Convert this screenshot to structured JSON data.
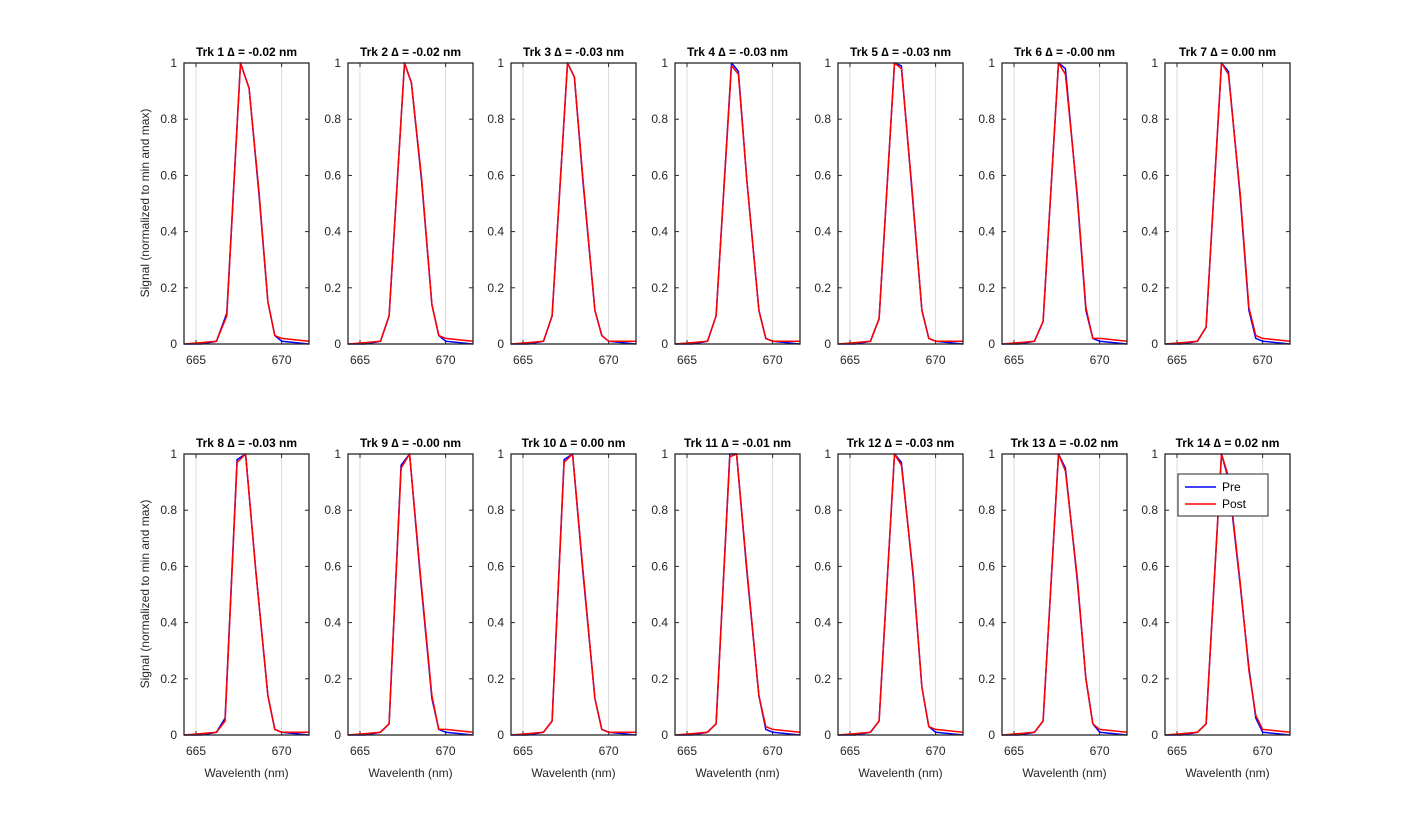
{
  "figure": {
    "ylabel": "Signal (normalized to min and max)",
    "xlabel": "Wavelenth (nm)",
    "legend": {
      "placement": "top-right of panel 14",
      "entries": [
        "Pre",
        "Post"
      ]
    },
    "colors": {
      "pre": "#0000ff",
      "post": "#ff0000",
      "axes": "#262626",
      "grid": "#dcdcdc",
      "background": "#ffffff"
    }
  },
  "chart_data": [
    {
      "type": "line",
      "title": "Trk 1 ∆ = -0.02 nm",
      "xlim": [
        664.3,
        671.6
      ],
      "ylim": [
        0,
        1
      ],
      "xticks": [
        665,
        670
      ],
      "yticks": [
        0,
        0.2,
        0.4,
        0.6,
        0.8,
        1
      ],
      "grid": true,
      "x": [
        664.3,
        665.3,
        666.2,
        666.8,
        667.6,
        668.1,
        668.7,
        669.2,
        669.6,
        670.0,
        671.6
      ],
      "series": [
        {
          "name": "Pre",
          "values": [
            0,
            0,
            0.01,
            0.11,
            1,
            0.91,
            0.52,
            0.15,
            0.03,
            0.01,
            0
          ]
        },
        {
          "name": "Post",
          "values": [
            0,
            0.005,
            0.01,
            0.1,
            1,
            0.91,
            0.53,
            0.15,
            0.03,
            0.02,
            0.01
          ]
        }
      ]
    },
    {
      "type": "line",
      "title": "Trk 2 ∆ = -0.02 nm",
      "xlim": [
        664.3,
        671.6
      ],
      "ylim": [
        0,
        1
      ],
      "xticks": [
        665,
        670
      ],
      "yticks": [
        0,
        0.2,
        0.4,
        0.6,
        0.8,
        1
      ],
      "grid": true,
      "x": [
        664.3,
        665.3,
        666.2,
        666.7,
        667.6,
        668.0,
        668.6,
        669.2,
        669.6,
        670.0,
        671.6
      ],
      "series": [
        {
          "name": "Pre",
          "values": [
            0,
            0,
            0.01,
            0.1,
            1,
            0.93,
            0.58,
            0.14,
            0.03,
            0.01,
            0
          ]
        },
        {
          "name": "Post",
          "values": [
            0,
            0.005,
            0.01,
            0.1,
            1,
            0.93,
            0.59,
            0.14,
            0.03,
            0.02,
            0.01
          ]
        }
      ]
    },
    {
      "type": "line",
      "title": "Trk 3 ∆ = -0.03 nm",
      "xlim": [
        664.3,
        671.6
      ],
      "ylim": [
        0,
        1
      ],
      "xticks": [
        665,
        670
      ],
      "yticks": [
        0,
        0.2,
        0.4,
        0.6,
        0.8,
        1
      ],
      "grid": true,
      "x": [
        664.3,
        665.3,
        666.2,
        666.7,
        667.6,
        668.0,
        668.5,
        669.2,
        669.6,
        670.0,
        671.6
      ],
      "series": [
        {
          "name": "Pre",
          "values": [
            0,
            0,
            0.01,
            0.1,
            1,
            0.95,
            0.58,
            0.12,
            0.03,
            0.01,
            0
          ]
        },
        {
          "name": "Post",
          "values": [
            0,
            0.005,
            0.01,
            0.1,
            1,
            0.95,
            0.59,
            0.12,
            0.03,
            0.01,
            0.01
          ]
        }
      ]
    },
    {
      "type": "line",
      "title": "Trk 4 ∆ = -0.03 nm",
      "xlim": [
        664.3,
        671.6
      ],
      "ylim": [
        0,
        1
      ],
      "xticks": [
        665,
        670
      ],
      "yticks": [
        0,
        0.2,
        0.4,
        0.6,
        0.8,
        1
      ],
      "grid": true,
      "x": [
        664.3,
        665.3,
        666.2,
        666.7,
        667.6,
        668.0,
        668.5,
        669.2,
        669.6,
        670.0,
        671.6
      ],
      "series": [
        {
          "name": "Pre",
          "values": [
            0,
            0,
            0.01,
            0.1,
            1,
            0.97,
            0.58,
            0.12,
            0.02,
            0.01,
            0
          ]
        },
        {
          "name": "Post",
          "values": [
            0,
            0.005,
            0.01,
            0.1,
            0.99,
            0.96,
            0.58,
            0.12,
            0.02,
            0.01,
            0.01
          ]
        }
      ]
    },
    {
      "type": "line",
      "title": "Trk 5 ∆ = -0.03 nm",
      "xlim": [
        664.3,
        671.6
      ],
      "ylim": [
        0,
        1
      ],
      "xticks": [
        665,
        670
      ],
      "yticks": [
        0,
        0.2,
        0.4,
        0.6,
        0.8,
        1
      ],
      "grid": true,
      "x": [
        664.3,
        665.3,
        666.2,
        666.7,
        667.6,
        668.0,
        668.6,
        669.2,
        669.6,
        670.0,
        671.6
      ],
      "series": [
        {
          "name": "Pre",
          "values": [
            0,
            0,
            0.01,
            0.09,
            1,
            0.99,
            0.56,
            0.12,
            0.02,
            0.01,
            0
          ]
        },
        {
          "name": "Post",
          "values": [
            0,
            0.005,
            0.01,
            0.09,
            1,
            0.98,
            0.57,
            0.12,
            0.02,
            0.01,
            0.01
          ]
        }
      ]
    },
    {
      "type": "line",
      "title": "Trk 6 ∆ = -0.00 nm",
      "xlim": [
        664.3,
        671.6
      ],
      "ylim": [
        0,
        1
      ],
      "xticks": [
        665,
        670
      ],
      "yticks": [
        0,
        0.2,
        0.4,
        0.6,
        0.8,
        1
      ],
      "grid": true,
      "x": [
        664.3,
        665.3,
        666.2,
        666.7,
        667.6,
        668.0,
        668.7,
        669.2,
        669.6,
        670.0,
        671.6
      ],
      "series": [
        {
          "name": "Pre",
          "values": [
            0,
            0,
            0.01,
            0.08,
            1,
            0.98,
            0.52,
            0.12,
            0.02,
            0.01,
            0
          ]
        },
        {
          "name": "Post",
          "values": [
            0,
            0.005,
            0.01,
            0.08,
            1,
            0.96,
            0.53,
            0.13,
            0.02,
            0.02,
            0.01
          ]
        }
      ]
    },
    {
      "type": "line",
      "title": "Trk 7 ∆ = 0.00 nm",
      "xlim": [
        664.3,
        671.6
      ],
      "ylim": [
        0,
        1
      ],
      "xticks": [
        665,
        670
      ],
      "yticks": [
        0,
        0.2,
        0.4,
        0.6,
        0.8,
        1
      ],
      "grid": true,
      "x": [
        664.3,
        665.3,
        666.2,
        666.7,
        667.6,
        668.0,
        668.7,
        669.2,
        669.6,
        670.0,
        671.6
      ],
      "series": [
        {
          "name": "Pre",
          "values": [
            0,
            0,
            0.01,
            0.06,
            1,
            0.97,
            0.52,
            0.12,
            0.02,
            0.01,
            0
          ]
        },
        {
          "name": "Post",
          "values": [
            0,
            0.005,
            0.01,
            0.06,
            1,
            0.96,
            0.53,
            0.13,
            0.03,
            0.02,
            0.01
          ]
        }
      ]
    },
    {
      "type": "line",
      "title": "Trk 8 ∆ = -0.03 nm",
      "xlim": [
        664.3,
        671.6
      ],
      "ylim": [
        0,
        1
      ],
      "xticks": [
        665,
        670
      ],
      "yticks": [
        0,
        0.2,
        0.4,
        0.6,
        0.8,
        1
      ],
      "grid": true,
      "x": [
        664.3,
        665.3,
        666.2,
        666.7,
        667.4,
        667.9,
        668.5,
        669.2,
        669.6,
        670.0,
        671.6
      ],
      "series": [
        {
          "name": "Pre",
          "values": [
            0,
            0,
            0.01,
            0.06,
            0.98,
            1,
            0.58,
            0.14,
            0.02,
            0.01,
            0
          ]
        },
        {
          "name": "Post",
          "values": [
            0,
            0.005,
            0.01,
            0.05,
            0.97,
            1,
            0.58,
            0.14,
            0.02,
            0.01,
            0.01
          ]
        }
      ]
    },
    {
      "type": "line",
      "title": "Trk 9 ∆ = -0.00 nm",
      "xlim": [
        664.3,
        671.6
      ],
      "ylim": [
        0,
        1
      ],
      "xticks": [
        665,
        670
      ],
      "yticks": [
        0,
        0.2,
        0.4,
        0.6,
        0.8,
        1
      ],
      "grid": true,
      "x": [
        664.3,
        665.3,
        666.2,
        666.7,
        667.4,
        667.9,
        668.5,
        669.2,
        669.6,
        670.0,
        671.6
      ],
      "series": [
        {
          "name": "Pre",
          "values": [
            0,
            0,
            0.01,
            0.04,
            0.96,
            1,
            0.58,
            0.13,
            0.02,
            0.01,
            0
          ]
        },
        {
          "name": "Post",
          "values": [
            0,
            0.005,
            0.01,
            0.04,
            0.95,
            1,
            0.59,
            0.14,
            0.02,
            0.02,
            0.01
          ]
        }
      ]
    },
    {
      "type": "line",
      "title": "Trk 10 ∆ = 0.00 nm",
      "xlim": [
        664.3,
        671.6
      ],
      "ylim": [
        0,
        1
      ],
      "xticks": [
        665,
        670
      ],
      "yticks": [
        0,
        0.2,
        0.4,
        0.6,
        0.8,
        1
      ],
      "grid": true,
      "x": [
        664.3,
        665.3,
        666.2,
        666.7,
        667.4,
        667.9,
        668.5,
        669.2,
        669.6,
        670.0,
        671.6
      ],
      "series": [
        {
          "name": "Pre",
          "values": [
            0,
            0,
            0.01,
            0.05,
            0.98,
            1,
            0.58,
            0.13,
            0.02,
            0.01,
            0
          ]
        },
        {
          "name": "Post",
          "values": [
            0,
            0.005,
            0.01,
            0.05,
            0.97,
            1,
            0.59,
            0.13,
            0.02,
            0.01,
            0.01
          ]
        }
      ]
    },
    {
      "type": "line",
      "title": "Trk 11 ∆ = -0.01 nm",
      "xlim": [
        664.3,
        671.6
      ],
      "ylim": [
        0,
        1
      ],
      "xticks": [
        665,
        670
      ],
      "yticks": [
        0,
        0.2,
        0.4,
        0.6,
        0.8,
        1
      ],
      "grid": true,
      "x": [
        664.3,
        665.3,
        666.2,
        666.7,
        667.5,
        667.9,
        668.5,
        669.2,
        669.6,
        670.0,
        671.6
      ],
      "series": [
        {
          "name": "Pre",
          "values": [
            0,
            0,
            0.01,
            0.04,
            1,
            1,
            0.58,
            0.14,
            0.02,
            0.01,
            0
          ]
        },
        {
          "name": "Post",
          "values": [
            0,
            0.005,
            0.01,
            0.04,
            0.99,
            1,
            0.59,
            0.14,
            0.03,
            0.02,
            0.01
          ]
        }
      ]
    },
    {
      "type": "line",
      "title": "Trk 12 ∆ = -0.03 nm",
      "xlim": [
        664.3,
        671.6
      ],
      "ylim": [
        0,
        1
      ],
      "xticks": [
        665,
        670
      ],
      "yticks": [
        0,
        0.2,
        0.4,
        0.6,
        0.8,
        1
      ],
      "grid": true,
      "x": [
        664.3,
        665.3,
        666.2,
        666.7,
        667.6,
        668.0,
        668.7,
        669.2,
        669.6,
        670.0,
        671.6
      ],
      "series": [
        {
          "name": "Pre",
          "values": [
            0,
            0,
            0.01,
            0.05,
            1,
            0.97,
            0.56,
            0.17,
            0.03,
            0.01,
            0
          ]
        },
        {
          "name": "Post",
          "values": [
            0,
            0.005,
            0.01,
            0.05,
            1,
            0.96,
            0.57,
            0.17,
            0.03,
            0.02,
            0.01
          ]
        }
      ]
    },
    {
      "type": "line",
      "title": "Trk 13 ∆ = -0.02 nm",
      "xlim": [
        664.3,
        671.6
      ],
      "ylim": [
        0,
        1
      ],
      "xticks": [
        665,
        670
      ],
      "yticks": [
        0,
        0.2,
        0.4,
        0.6,
        0.8,
        1
      ],
      "grid": true,
      "x": [
        664.3,
        665.3,
        666.2,
        666.7,
        667.6,
        668.0,
        668.7,
        669.2,
        669.6,
        670.0,
        671.6
      ],
      "series": [
        {
          "name": "Pre",
          "values": [
            0,
            0,
            0.01,
            0.05,
            1,
            0.95,
            0.55,
            0.2,
            0.04,
            0.01,
            0
          ]
        },
        {
          "name": "Post",
          "values": [
            0,
            0.005,
            0.01,
            0.05,
            1,
            0.94,
            0.56,
            0.2,
            0.04,
            0.02,
            0.01
          ]
        }
      ]
    },
    {
      "type": "line",
      "title": "Trk 14 ∆ = 0.02 nm",
      "xlim": [
        664.3,
        671.6
      ],
      "ylim": [
        0,
        1
      ],
      "xticks": [
        665,
        670
      ],
      "yticks": [
        0,
        0.2,
        0.4,
        0.6,
        0.8,
        1
      ],
      "grid": true,
      "x": [
        664.3,
        665.3,
        666.2,
        666.7,
        667.6,
        668.0,
        668.7,
        669.2,
        669.6,
        670.0,
        671.6
      ],
      "series": [
        {
          "name": "Pre",
          "values": [
            0,
            0,
            0.01,
            0.04,
            1,
            0.91,
            0.53,
            0.24,
            0.06,
            0.01,
            0
          ]
        },
        {
          "name": "Post",
          "values": [
            0,
            0.005,
            0.01,
            0.04,
            1,
            0.92,
            0.54,
            0.23,
            0.07,
            0.02,
            0.01
          ]
        }
      ]
    }
  ]
}
